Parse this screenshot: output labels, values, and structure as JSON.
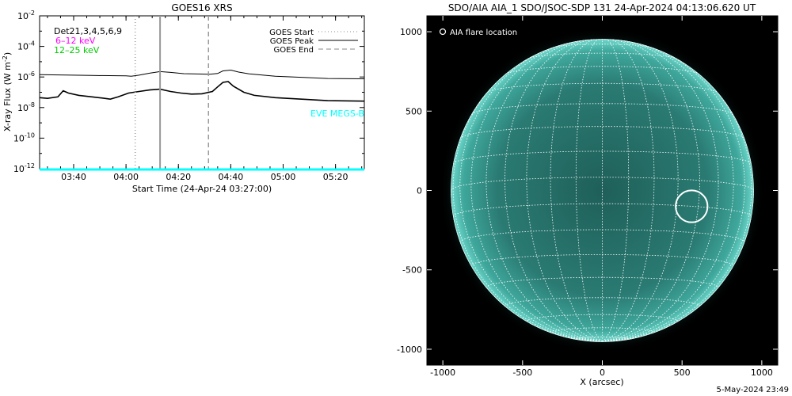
{
  "chart_data": [
    {
      "type": "line",
      "title": "GOES16 XRS",
      "xlabel": "Start Time (24-Apr-24 03:27:00)",
      "ylabel": "X-ray Flux (W m",
      "ylabel_sup": "-2",
      "ylabel_end": ")",
      "x_unit": "minutes since 03:27 UT",
      "xlim": [
        0,
        124
      ],
      "ylim_log10": [
        -12,
        -2
      ],
      "y_scale": "log",
      "xticks": [
        {
          "label": "03:40",
          "minute": 13
        },
        {
          "label": "04:00",
          "minute": 33
        },
        {
          "label": "04:20",
          "minute": 53
        },
        {
          "label": "04:40",
          "minute": 73
        },
        {
          "label": "05:00",
          "minute": 93
        },
        {
          "label": "05:20",
          "minute": 113
        }
      ],
      "yticks": [
        {
          "base": "10",
          "exp": "-2",
          "log10": -2
        },
        {
          "base": "10",
          "exp": "-4",
          "log10": -4
        },
        {
          "base": "10",
          "exp": "-6",
          "log10": -6
        },
        {
          "base": "10",
          "exp": "-8",
          "log10": -8
        },
        {
          "base": "10",
          "exp": "-10",
          "log10": -10
        },
        {
          "base": "10",
          "exp": "-12",
          "log10": -12
        }
      ],
      "annotations": {
        "det": "Det21,3,4,5,6,9",
        "band1": "6–12 keV",
        "band2": "12–25 keV",
        "eve": "EVE MEGS-B"
      },
      "colors": {
        "band1": "#ff00ff",
        "band2": "#00cc00",
        "eve": "#00ffff",
        "series": "#000000",
        "markers": "#999999"
      },
      "legend": {
        "placement": "top-right",
        "items": [
          {
            "label": "GOES Start",
            "style": "dotted",
            "minute": 36.5
          },
          {
            "label": "GOES Peak",
            "style": "solid",
            "minute": 46
          },
          {
            "label": "GOES End",
            "style": "dashed",
            "minute": 64.5
          }
        ]
      },
      "series": [
        {
          "points_log10": [
            [
              0,
              -5.85
            ],
            [
              10,
              -5.87
            ],
            [
              20,
              -5.9
            ],
            [
              33,
              -5.93
            ],
            [
              35,
              -5.95
            ],
            [
              38,
              -5.88
            ],
            [
              42,
              -5.75
            ],
            [
              46,
              -5.65
            ],
            [
              50,
              -5.7
            ],
            [
              55,
              -5.78
            ],
            [
              65,
              -5.82
            ],
            [
              68,
              -5.77
            ],
            [
              70,
              -5.6
            ],
            [
              73,
              -5.55
            ],
            [
              76,
              -5.68
            ],
            [
              80,
              -5.8
            ],
            [
              90,
              -5.95
            ],
            [
              100,
              -6.02
            ],
            [
              110,
              -6.1
            ],
            [
              124,
              -6.12
            ]
          ]
        },
        {
          "points_log10": [
            [
              0,
              -7.35
            ],
            [
              3,
              -7.4
            ],
            [
              7,
              -7.3
            ],
            [
              9,
              -6.9
            ],
            [
              11,
              -7.05
            ],
            [
              15,
              -7.2
            ],
            [
              20,
              -7.3
            ],
            [
              24,
              -7.38
            ],
            [
              27,
              -7.45
            ],
            [
              30,
              -7.3
            ],
            [
              34,
              -7.05
            ],
            [
              38,
              -6.95
            ],
            [
              42,
              -6.85
            ],
            [
              46,
              -6.8
            ],
            [
              50,
              -6.95
            ],
            [
              54,
              -7.05
            ],
            [
              58,
              -7.12
            ],
            [
              62,
              -7.1
            ],
            [
              66,
              -6.95
            ],
            [
              68,
              -6.65
            ],
            [
              70,
              -6.35
            ],
            [
              72,
              -6.3
            ],
            [
              74,
              -6.6
            ],
            [
              78,
              -7.0
            ],
            [
              82,
              -7.2
            ],
            [
              90,
              -7.35
            ],
            [
              100,
              -7.45
            ],
            [
              110,
              -7.55
            ],
            [
              124,
              -7.58
            ]
          ]
        }
      ],
      "eve_level_log10": -12.05
    },
    {
      "type": "scatter",
      "title": "SDO/AIA AIA_1 SDO/JSOC-SDP 131 24-Apr-2024 04:13:06.620 UT",
      "xlabel": "X (arcsec)",
      "ylabel": "",
      "xlim": [
        -1100,
        1100
      ],
      "ylim": [
        -1100,
        1100
      ],
      "xticks": [
        "-1000",
        "-500",
        "0",
        "500",
        "1000"
      ],
      "yticks": [
        "1000",
        "500",
        "0",
        "-500",
        "-1000"
      ],
      "solar_radius_arcsec": 950,
      "grid_spacing_deg": 10,
      "legend": {
        "placement": "top-left",
        "label": "AIA flare location"
      },
      "flare": {
        "x": 560,
        "y": -100,
        "marker_radius_arcsec": 100
      },
      "colors": {
        "disk": "#2f8f86",
        "grid": "#ffffff",
        "background": "#000000"
      }
    }
  ],
  "footer": "5-May-2024 23:49"
}
